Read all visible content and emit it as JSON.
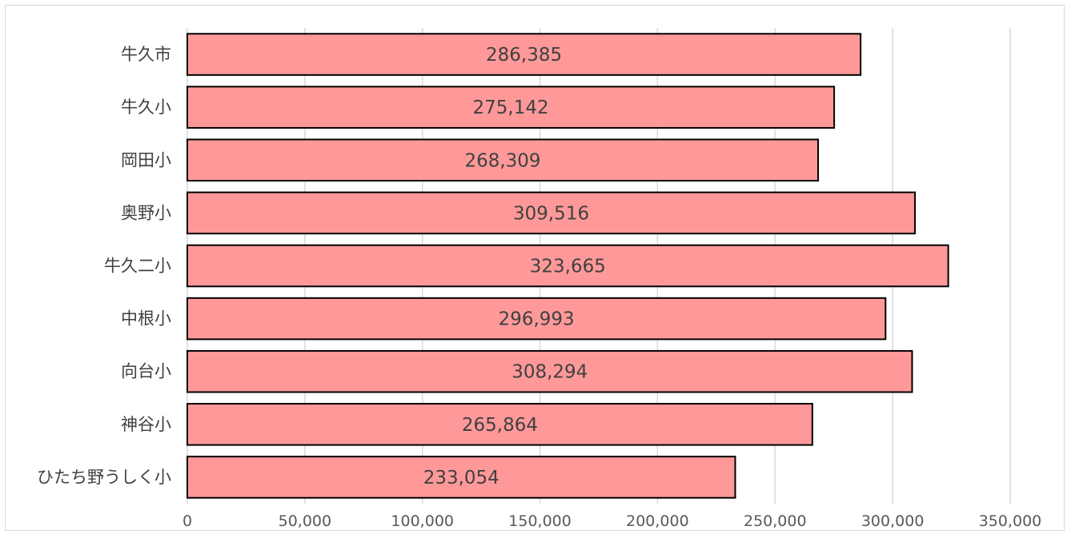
{
  "chart_data": {
    "type": "bar",
    "orientation": "horizontal",
    "categories": [
      "牛久市",
      "牛久小",
      "岡田小",
      "奥野小",
      "牛久二小",
      "中根小",
      "向台小",
      "神谷小",
      "ひたち野うしく小"
    ],
    "values": [
      286385,
      275142,
      268309,
      309516,
      323665,
      296993,
      308294,
      265864,
      233054
    ],
    "value_labels": [
      "286,385",
      "275,142",
      "268,309",
      "309,516",
      "323,665",
      "296,993",
      "308,294",
      "265,864",
      "233,054"
    ],
    "xticks": [
      "0",
      "50,000",
      "100,000",
      "150,000",
      "200,000",
      "250,000",
      "300,000",
      "350,000"
    ],
    "xlim": [
      0,
      350000
    ],
    "grid": true,
    "colors": {
      "bar_fill": "#ff9999",
      "bar_stroke": "#000000",
      "grid": "#d9d9d9"
    }
  }
}
